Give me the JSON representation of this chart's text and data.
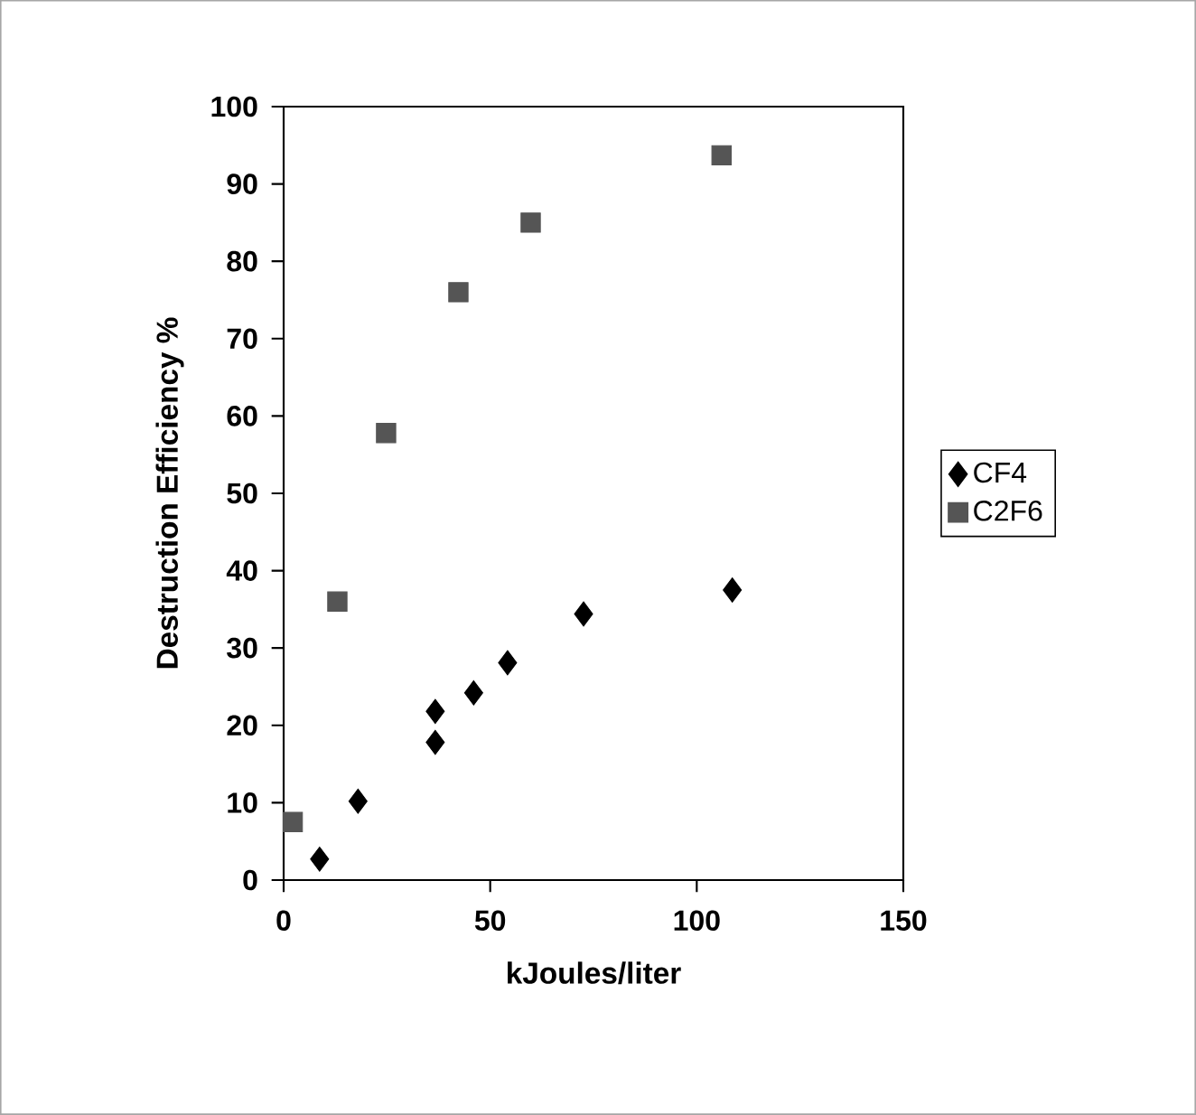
{
  "chart_data": {
    "type": "scatter",
    "xlabel": "kJoules/liter",
    "ylabel": "Destruction Efficiency %",
    "xlim": [
      0,
      150
    ],
    "xticks": [
      0,
      50,
      100,
      150
    ],
    "ylim": [
      0,
      100
    ],
    "yticks": [
      0,
      10,
      20,
      30,
      40,
      50,
      60,
      70,
      80,
      90,
      100
    ],
    "grid": false,
    "legend": "right",
    "series": [
      {
        "name": "CF4",
        "color": "#000000",
        "marker": "diamond",
        "x": [
          8.7,
          18,
          36.7,
          36.7,
          46,
          54.2,
          72.6,
          108.6
        ],
        "values": [
          2.7,
          10.2,
          17.8,
          21.8,
          24.2,
          28.1,
          34.4,
          37.5
        ]
      },
      {
        "name": "C2F6",
        "color": "#555555",
        "marker": "square",
        "x": [
          2.2,
          13,
          24.8,
          42.3,
          59.8,
          106
        ],
        "values": [
          7.5,
          36,
          57.8,
          76,
          85,
          93.7
        ]
      }
    ]
  }
}
